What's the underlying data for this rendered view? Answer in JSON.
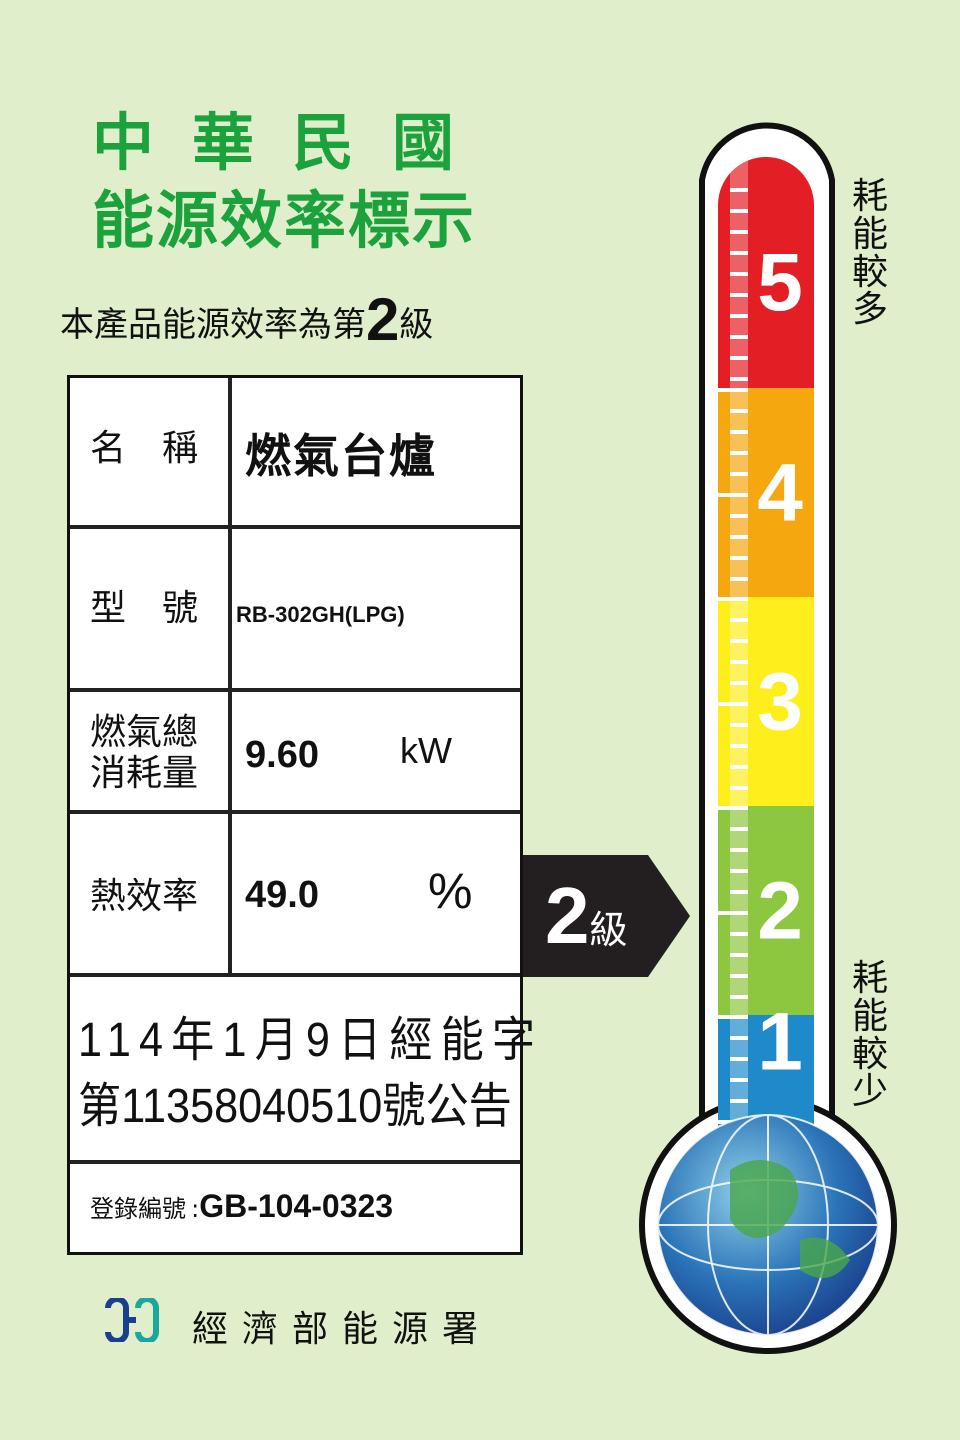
{
  "header": {
    "title_line1": "中華民國",
    "title_line2": "能源效率標示"
  },
  "grade_statement": {
    "prefix": "本產品能源效率為第",
    "grade": "2",
    "suffix": "級"
  },
  "table": {
    "name_label": "名　稱",
    "name_value": "燃氣台爐",
    "model_label": "型　號",
    "model_value": "RB-302GH(LPG)",
    "consumption_label_1": "燃氣總",
    "consumption_label_2": "消耗量",
    "consumption_value": "9.60",
    "consumption_unit": "kW",
    "efficiency_label": "熱效率",
    "efficiency_value": "49.0",
    "efficiency_unit": "%",
    "announcement_line1": "114年1月9日經能字",
    "announcement_line2": "第11358040510號公告",
    "registration_label": "登錄編號",
    "registration_sep": ":",
    "registration_value": "GB-104-0323"
  },
  "indicator": {
    "grade": "2",
    "suffix": "級"
  },
  "thermometer": {
    "levels": [
      "5",
      "4",
      "3",
      "2",
      "1"
    ],
    "colors": [
      "#e31e24",
      "#f4a70f",
      "#fdee1c",
      "#8dc63f",
      "#1f8ac9"
    ],
    "top_label": "耗能較多",
    "bottom_label": "耗能較少",
    "current_level": 2
  },
  "footer": {
    "agency": "經濟部能源署",
    "logo": "energy-administration-logo"
  },
  "colors": {
    "background": "#e1eecb",
    "title_green": "#1ca23c"
  }
}
